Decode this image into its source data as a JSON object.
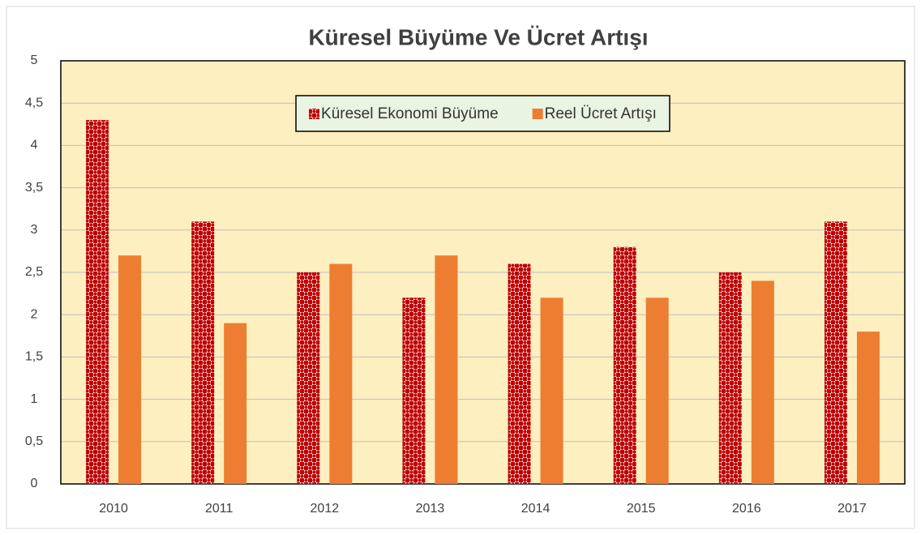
{
  "chart_data": {
    "type": "bar",
    "title": "Küresel Büyüme Ve Ücret Artışı",
    "categories": [
      "2010",
      "2011",
      "2012",
      "2013",
      "2014",
      "2015",
      "2016",
      "2017"
    ],
    "series": [
      {
        "name": "Küresel Ekonomi Büyüme",
        "color": "#c00000",
        "pattern": "dots",
        "values": [
          4.3,
          3.1,
          2.5,
          2.2,
          2.6,
          2.8,
          2.5,
          3.1
        ]
      },
      {
        "name": "Reel Ücret Artışı",
        "color": "#ed7d31",
        "values": [
          2.7,
          1.9,
          2.6,
          2.7,
          2.2,
          2.2,
          2.4,
          1.8
        ]
      }
    ],
    "ylim": [
      0,
      5
    ],
    "yticks": [
      0,
      {
        "value": 0.5,
        "label": "0,5"
      },
      1,
      {
        "value": 1.5,
        "label": "1,5"
      },
      2,
      {
        "value": 2.5,
        "label": "2,5"
      },
      3,
      {
        "value": 3.5,
        "label": "3,5"
      },
      4,
      {
        "value": 4.5,
        "label": "4,5"
      },
      5
    ],
    "grid": true,
    "legend": "top"
  }
}
